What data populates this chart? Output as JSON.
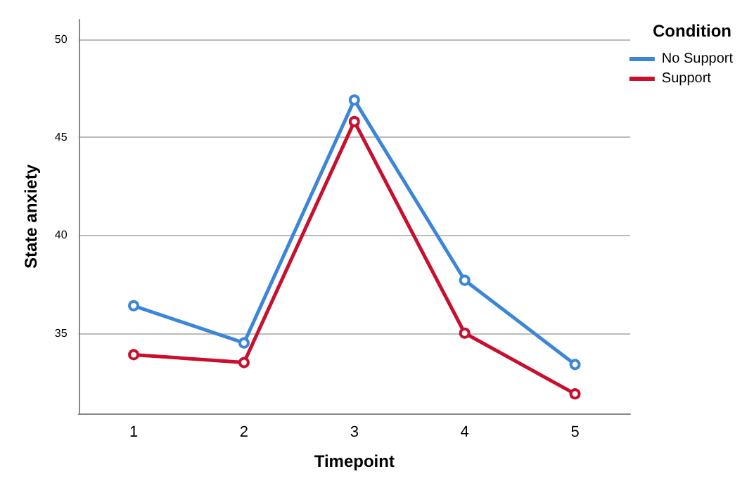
{
  "chart_data": {
    "type": "line",
    "xlabel": "Timepoint",
    "ylabel": "State anxiety",
    "legend_title": "Condition",
    "categories": [
      "1",
      "2",
      "3",
      "4",
      "5"
    ],
    "series": [
      {
        "name": "No Support",
        "color": "#3b86d8",
        "values": [
          36.4,
          34.5,
          46.9,
          37.7,
          33.4
        ]
      },
      {
        "name": "Support",
        "color": "#c8102e",
        "values": [
          33.9,
          33.5,
          45.8,
          35.0,
          31.9
        ]
      }
    ],
    "ylim": [
      30.9,
      51
    ],
    "yticks": [
      35,
      40,
      45,
      50
    ],
    "grid": "y",
    "legend": "top right",
    "marker": "circle",
    "line_style": "solid"
  }
}
